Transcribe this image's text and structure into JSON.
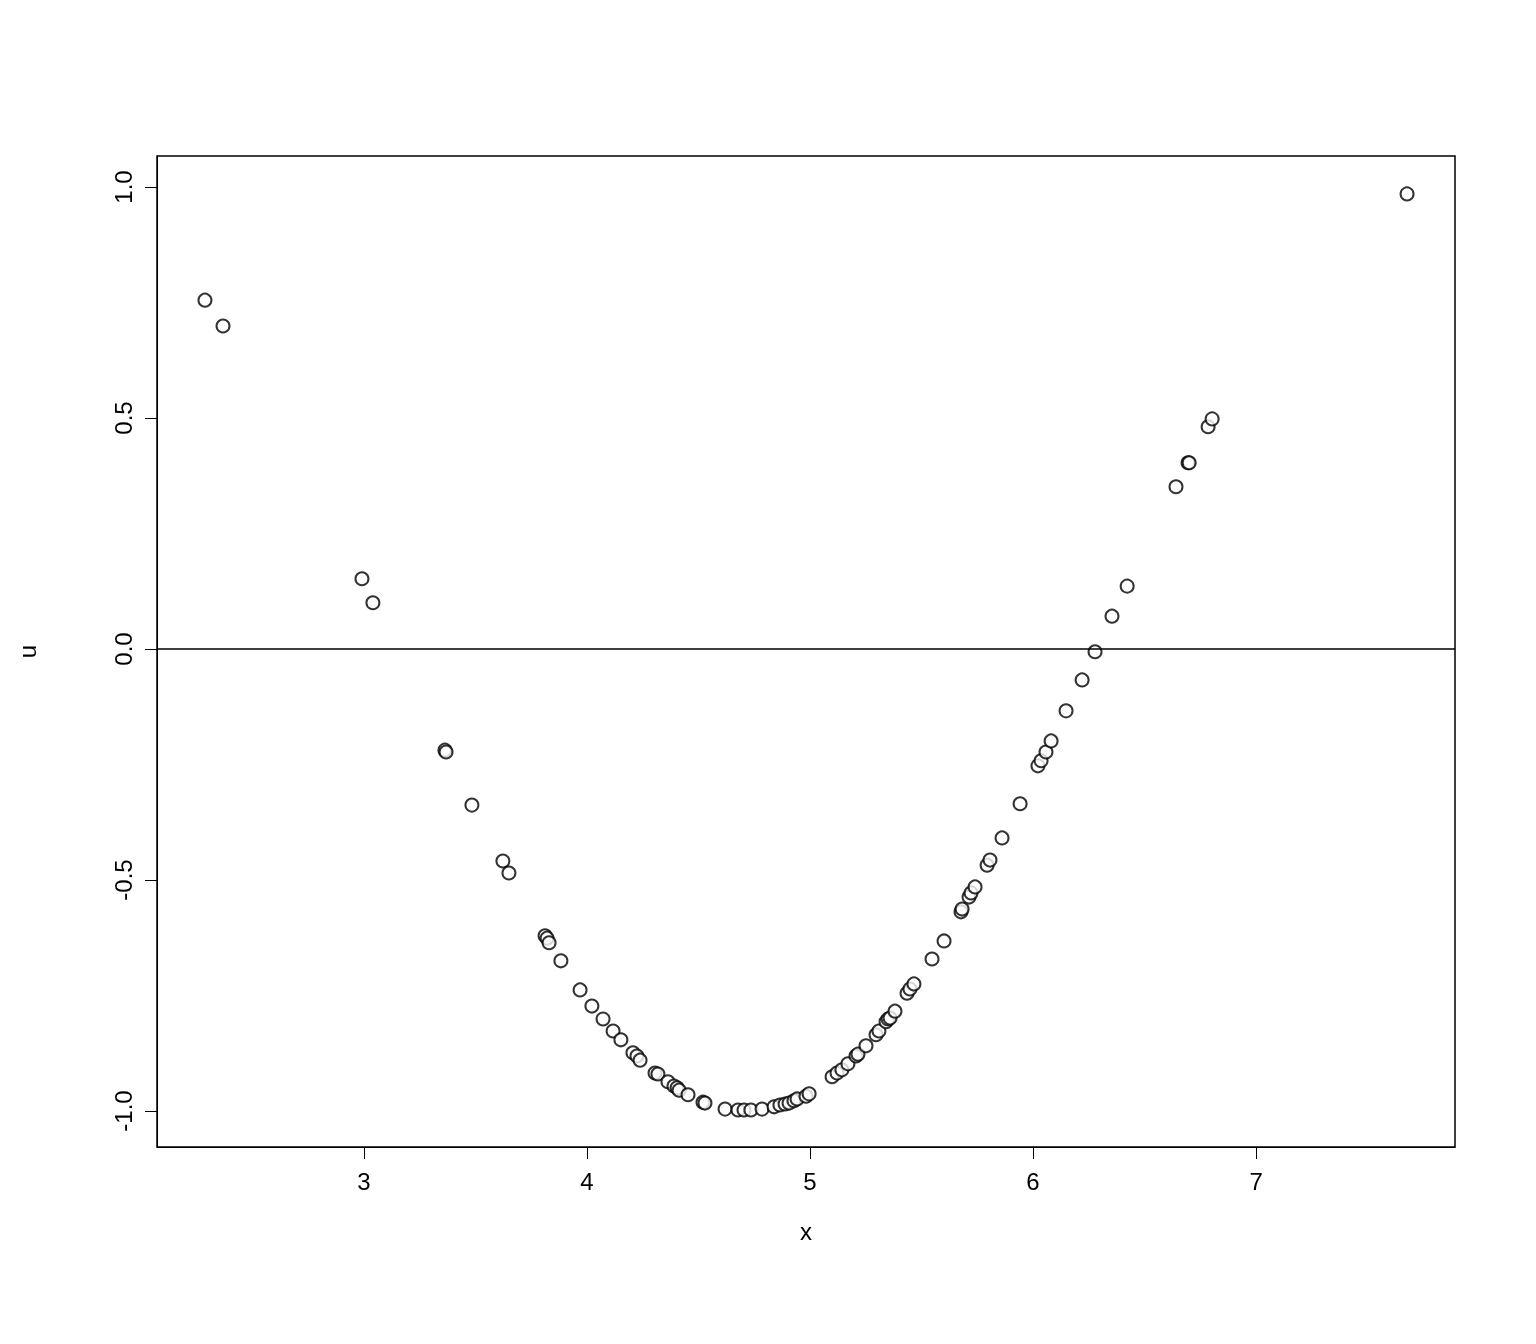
{
  "chart_data": {
    "type": "scatter",
    "xlabel": "x",
    "ylabel": "u",
    "x": [
      2.287,
      2.368,
      2.991,
      3.04,
      3.363,
      3.368,
      3.484,
      3.623,
      3.65,
      3.812,
      3.821,
      3.83,
      3.883,
      3.969,
      4.022,
      4.072,
      4.117,
      4.152,
      4.206,
      4.224,
      4.238,
      4.305,
      4.318,
      4.363,
      4.39,
      4.404,
      4.413,
      4.453,
      4.52,
      4.529,
      4.619,
      4.677,
      4.704,
      4.735,
      4.785,
      4.839,
      4.865,
      4.888,
      4.906,
      4.928,
      4.942,
      4.982,
      4.996,
      5.099,
      5.121,
      5.143,
      5.17,
      5.206,
      5.215,
      5.251,
      5.296,
      5.309,
      5.341,
      5.35,
      5.359,
      5.381,
      5.435,
      5.448,
      5.466,
      5.547,
      5.601,
      5.677,
      5.682,
      5.713,
      5.722,
      5.74,
      5.794,
      5.807,
      5.861,
      5.942,
      6.022,
      6.036,
      6.058,
      6.081,
      6.148,
      6.22,
      6.278,
      6.354,
      6.422,
      6.641,
      6.695,
      6.7,
      6.785,
      6.803,
      7.677
    ],
    "values": [
      0.755,
      0.699,
      0.152,
      0.1,
      -0.219,
      -0.223,
      -0.338,
      -0.459,
      -0.485,
      -0.621,
      -0.626,
      -0.636,
      -0.675,
      -0.738,
      -0.773,
      -0.801,
      -0.827,
      -0.846,
      -0.874,
      -0.881,
      -0.89,
      -0.918,
      -0.92,
      -0.937,
      -0.946,
      -0.95,
      -0.955,
      -0.965,
      -0.981,
      -0.983,
      -0.996,
      -0.998,
      -0.998,
      -0.998,
      -0.996,
      -0.991,
      -0.987,
      -0.985,
      -0.983,
      -0.978,
      -0.974,
      -0.968,
      -0.963,
      -0.926,
      -0.918,
      -0.911,
      -0.898,
      -0.881,
      -0.877,
      -0.859,
      -0.835,
      -0.827,
      -0.807,
      -0.801,
      -0.799,
      -0.784,
      -0.745,
      -0.736,
      -0.725,
      -0.671,
      -0.632,
      -0.569,
      -0.563,
      -0.537,
      -0.528,
      -0.515,
      -0.468,
      -0.457,
      -0.409,
      -0.335,
      -0.253,
      -0.242,
      -0.223,
      -0.199,
      -0.134,
      -0.067,
      -0.006,
      0.071,
      0.136,
      0.351,
      0.403,
      0.403,
      0.481,
      0.498,
      0.985
    ],
    "color": "#000000",
    "marker": "circle",
    "grid": false,
    "xlim": [
      2.072,
      7.892
    ],
    "xticks": [
      3,
      4,
      5,
      6,
      7
    ],
    "ylim": [
      -1.078,
      1.067
    ],
    "yticks": [
      {
        "value": -1,
        "label": "-1.0"
      },
      {
        "value": -0.5,
        "label": "-0.5"
      },
      {
        "value": 0,
        "label": "0.0"
      },
      {
        "value": 0.5,
        "label": "0.5"
      },
      {
        "value": 1,
        "label": "1.0"
      }
    ],
    "ref_lines": [
      {
        "axis": "y",
        "value": 0,
        "color": "#000000"
      }
    ]
  }
}
